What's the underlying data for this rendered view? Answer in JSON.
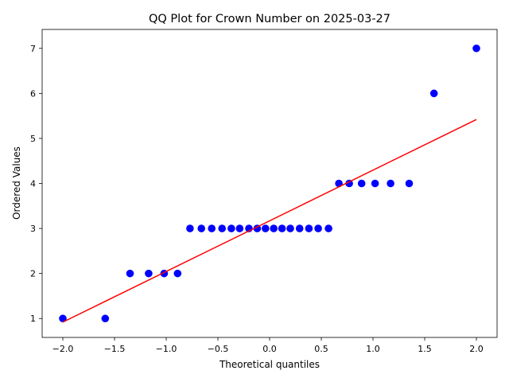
{
  "chart_data": {
    "type": "scatter",
    "title": "QQ Plot for Crown Number on 2025-03-27",
    "xlabel": "Theoretical quantiles",
    "ylabel": "Ordered Values",
    "xlim": [
      -2.2,
      2.2
    ],
    "ylim": [
      0.58,
      7.42
    ],
    "xticks": [
      -2.0,
      -1.5,
      -1.0,
      -0.5,
      0.0,
      0.5,
      1.0,
      1.5,
      2.0
    ],
    "xtick_labels": [
      "−2.0",
      "−1.5",
      "−1.0",
      "−0.5",
      "0.0",
      "0.5",
      "1.0",
      "1.5",
      "2.0"
    ],
    "yticks": [
      1,
      2,
      3,
      4,
      5,
      6,
      7
    ],
    "ytick_labels": [
      "1",
      "2",
      "3",
      "4",
      "5",
      "6",
      "7"
    ],
    "grid": false,
    "colors": {
      "points": "#0000ff",
      "fit_line": "#ff0000"
    },
    "points": [
      {
        "x": -2.0,
        "y": 1
      },
      {
        "x": -1.59,
        "y": 1
      },
      {
        "x": -1.35,
        "y": 2
      },
      {
        "x": -1.17,
        "y": 2
      },
      {
        "x": -1.02,
        "y": 2
      },
      {
        "x": -0.89,
        "y": 2
      },
      {
        "x": -0.77,
        "y": 3
      },
      {
        "x": -0.66,
        "y": 3
      },
      {
        "x": -0.56,
        "y": 3
      },
      {
        "x": -0.46,
        "y": 3
      },
      {
        "x": -0.37,
        "y": 3
      },
      {
        "x": -0.29,
        "y": 3
      },
      {
        "x": -0.2,
        "y": 3
      },
      {
        "x": -0.12,
        "y": 3
      },
      {
        "x": -0.04,
        "y": 3
      },
      {
        "x": 0.04,
        "y": 3
      },
      {
        "x": 0.12,
        "y": 3
      },
      {
        "x": 0.2,
        "y": 3
      },
      {
        "x": 0.29,
        "y": 3
      },
      {
        "x": 0.38,
        "y": 3
      },
      {
        "x": 0.47,
        "y": 3
      },
      {
        "x": 0.57,
        "y": 3
      },
      {
        "x": 0.67,
        "y": 4
      },
      {
        "x": 0.77,
        "y": 4
      },
      {
        "x": 0.89,
        "y": 4
      },
      {
        "x": 1.02,
        "y": 4
      },
      {
        "x": 1.17,
        "y": 4
      },
      {
        "x": 1.35,
        "y": 4
      },
      {
        "x": 1.59,
        "y": 6
      },
      {
        "x": 2.0,
        "y": 7
      }
    ],
    "fit_line": {
      "x": [
        -2.0,
        2.0
      ],
      "y": [
        0.92,
        5.42
      ]
    }
  }
}
